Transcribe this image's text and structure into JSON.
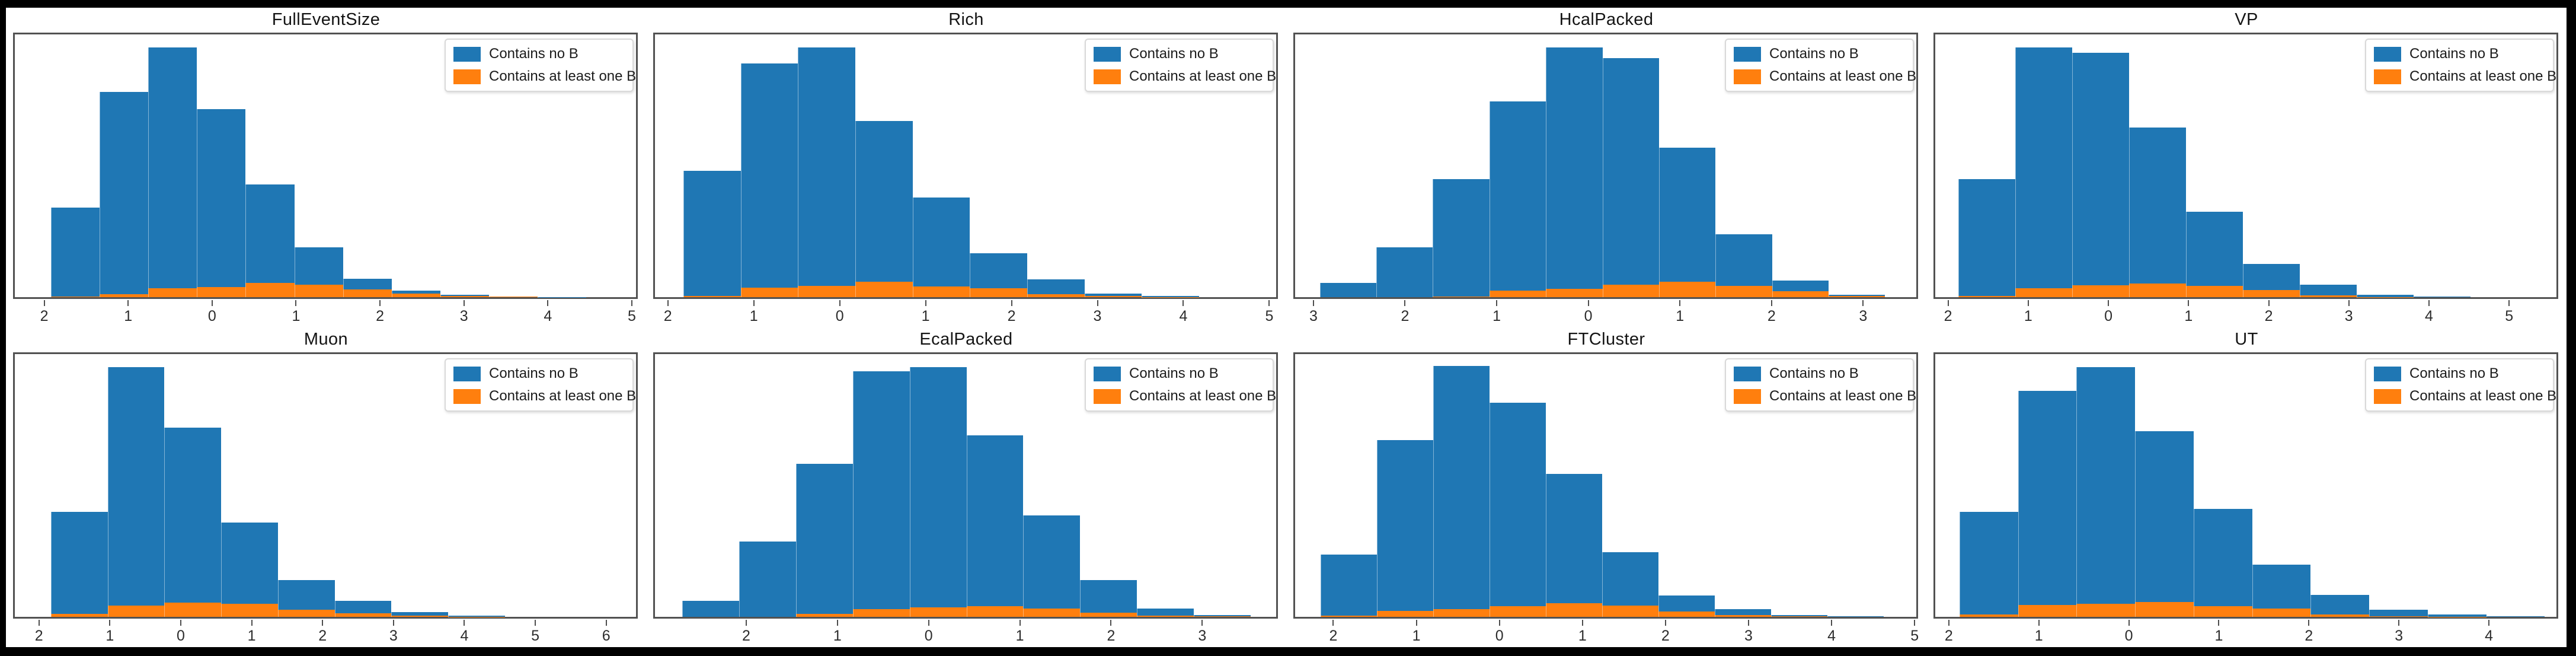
{
  "figure": {
    "background": "#000000",
    "canvas_color": "#ffffff",
    "rows": 2,
    "cols": 4
  },
  "colors": {
    "blue": "#1f77b4",
    "orange": "#ff7f0e",
    "spine": "#525252",
    "tick": "#4d4d4d",
    "title_text": "#141414"
  },
  "legend": {
    "position": "upper right",
    "items": [
      {
        "label": "Contains no B",
        "color": "#1f77b4"
      },
      {
        "label": "Contains at least one B",
        "color": "#ff7f0e"
      }
    ]
  },
  "chart_data": [
    {
      "type": "histogram",
      "title": "FullEventSize",
      "x_range": [
        -2.35,
        5.05
      ],
      "bin_start": -1.92,
      "bin_width": 0.58,
      "grid": false,
      "legend_position": "upper right",
      "x_ticks": [
        {
          "value": -2,
          "label": "2"
        },
        {
          "value": -1,
          "label": "1"
        },
        {
          "value": 0,
          "label": "0"
        },
        {
          "value": 1,
          "label": "1"
        },
        {
          "value": 2,
          "label": "2"
        },
        {
          "value": 3,
          "label": "3"
        },
        {
          "value": 4,
          "label": "4"
        },
        {
          "value": 5,
          "label": "5"
        }
      ],
      "series": [
        {
          "name": "Contains no B",
          "color": "#1f77b4",
          "heights_fraction": [
            0.34,
            0.78,
            0.95,
            0.715,
            0.43,
            0.19,
            0.07,
            0.024,
            0.009,
            0.003,
            0.001
          ]
        },
        {
          "name": "Contains at least one B",
          "color": "#ff7f0e",
          "heights_fraction": [
            0.003,
            0.012,
            0.035,
            0.038,
            0.055,
            0.048,
            0.03,
            0.013,
            0.005,
            0.002,
            0
          ]
        }
      ]
    },
    {
      "type": "histogram",
      "title": "Rich",
      "x_range": [
        -2.15,
        5.08
      ],
      "bin_start": -1.82,
      "bin_width": 0.667,
      "grid": false,
      "legend_position": "upper right",
      "x_ticks": [
        {
          "value": -2,
          "label": "2"
        },
        {
          "value": -1,
          "label": "1"
        },
        {
          "value": 0,
          "label": "0"
        },
        {
          "value": 1,
          "label": "1"
        },
        {
          "value": 2,
          "label": "2"
        },
        {
          "value": 3,
          "label": "3"
        },
        {
          "value": 4,
          "label": "4"
        },
        {
          "value": 5,
          "label": "5"
        }
      ],
      "series": [
        {
          "name": "Contains no B",
          "color": "#1f77b4",
          "heights_fraction": [
            0.48,
            0.89,
            0.95,
            0.67,
            0.38,
            0.167,
            0.068,
            0.013,
            0.004
          ]
        },
        {
          "name": "Contains at least one B",
          "color": "#ff7f0e",
          "heights_fraction": [
            0.004,
            0.037,
            0.042,
            0.058,
            0.04,
            0.033,
            0.012,
            0.004,
            0.001
          ]
        }
      ]
    },
    {
      "type": "histogram",
      "title": "HcalPacked",
      "x_range": [
        -3.2,
        3.58
      ],
      "bin_start": -2.93,
      "bin_width": 0.617,
      "grid": false,
      "legend_position": "upper right",
      "x_ticks": [
        {
          "value": -3,
          "label": "3"
        },
        {
          "value": -2,
          "label": "2"
        },
        {
          "value": -1,
          "label": "1"
        },
        {
          "value": 0,
          "label": "0"
        },
        {
          "value": 1,
          "label": "1"
        },
        {
          "value": 2,
          "label": "2"
        },
        {
          "value": 3,
          "label": "3"
        }
      ],
      "series": [
        {
          "name": "Contains no B",
          "color": "#1f77b4",
          "heights_fraction": [
            0.055,
            0.19,
            0.45,
            0.745,
            0.95,
            0.91,
            0.57,
            0.24,
            0.063,
            0.008
          ]
        },
        {
          "name": "Contains at least one B",
          "color": "#ff7f0e",
          "heights_fraction": [
            0,
            0,
            0.002,
            0.024,
            0.032,
            0.048,
            0.059,
            0.044,
            0.022,
            0.004
          ]
        }
      ]
    },
    {
      "type": "histogram",
      "title": "VP",
      "x_range": [
        -2.16,
        5.59
      ],
      "bin_start": -1.87,
      "bin_width": 0.71,
      "grid": false,
      "legend_position": "upper right",
      "x_ticks": [
        {
          "value": -2,
          "label": "2"
        },
        {
          "value": -1,
          "label": "1"
        },
        {
          "value": 0,
          "label": "0"
        },
        {
          "value": 1,
          "label": "1"
        },
        {
          "value": 2,
          "label": "2"
        },
        {
          "value": 3,
          "label": "3"
        },
        {
          "value": 4,
          "label": "4"
        },
        {
          "value": 5,
          "label": "5"
        }
      ],
      "series": [
        {
          "name": "Contains no B",
          "color": "#1f77b4",
          "heights_fraction": [
            0.45,
            0.95,
            0.93,
            0.646,
            0.325,
            0.127,
            0.047,
            0.01,
            0.003
          ]
        },
        {
          "name": "Contains at least one B",
          "color": "#ff7f0e",
          "heights_fraction": [
            0.005,
            0.035,
            0.046,
            0.051,
            0.043,
            0.026,
            0.006,
            0.001,
            0
          ]
        }
      ]
    },
    {
      "type": "histogram",
      "title": "Muon",
      "x_range": [
        -2.34,
        6.42
      ],
      "bin_start": -1.83,
      "bin_width": 0.8,
      "grid": false,
      "legend_position": "upper right",
      "x_ticks": [
        {
          "value": -2,
          "label": "2"
        },
        {
          "value": -1,
          "label": "1"
        },
        {
          "value": 0,
          "label": "0"
        },
        {
          "value": 1,
          "label": "1"
        },
        {
          "value": 2,
          "label": "2"
        },
        {
          "value": 3,
          "label": "3"
        },
        {
          "value": 4,
          "label": "4"
        },
        {
          "value": 5,
          "label": "5"
        },
        {
          "value": 6,
          "label": "6"
        }
      ],
      "series": [
        {
          "name": "Contains no B",
          "color": "#1f77b4",
          "heights_fraction": [
            0.4,
            0.95,
            0.72,
            0.36,
            0.14,
            0.06,
            0.017,
            0.004
          ]
        },
        {
          "name": "Contains at least one B",
          "color": "#ff7f0e",
          "heights_fraction": [
            0.012,
            0.043,
            0.055,
            0.049,
            0.028,
            0.014,
            0.005,
            0.001
          ]
        }
      ]
    },
    {
      "type": "histogram",
      "title": "EcalPacked",
      "x_range": [
        -3.0,
        3.81
      ],
      "bin_start": -2.7,
      "bin_width": 0.623,
      "grid": false,
      "legend_position": "upper right",
      "x_ticks": [
        {
          "value": -2,
          "label": "2"
        },
        {
          "value": -1,
          "label": "1"
        },
        {
          "value": 0,
          "label": "0"
        },
        {
          "value": 1,
          "label": "1"
        },
        {
          "value": 2,
          "label": "2"
        },
        {
          "value": 3,
          "label": "3"
        }
      ],
      "series": [
        {
          "name": "Contains no B",
          "color": "#1f77b4",
          "heights_fraction": [
            0.06,
            0.286,
            0.583,
            0.935,
            0.95,
            0.69,
            0.386,
            0.14,
            0.032,
            0.006
          ]
        },
        {
          "name": "Contains at least one B",
          "color": "#ff7f0e",
          "heights_fraction": [
            0,
            0,
            0.011,
            0.03,
            0.036,
            0.041,
            0.032,
            0.016,
            0.005,
            0.002
          ]
        }
      ]
    },
    {
      "type": "histogram",
      "title": "FTCluster",
      "x_range": [
        -2.46,
        5.02
      ],
      "bin_start": -2.15,
      "bin_width": 0.678,
      "grid": false,
      "legend_position": "upper right",
      "x_ticks": [
        {
          "value": -2,
          "label": "2"
        },
        {
          "value": -1,
          "label": "1"
        },
        {
          "value": 0,
          "label": "0"
        },
        {
          "value": 1,
          "label": "1"
        },
        {
          "value": 2,
          "label": "2"
        },
        {
          "value": 3,
          "label": "3"
        },
        {
          "value": 4,
          "label": "4"
        },
        {
          "value": 5,
          "label": "5"
        }
      ],
      "series": [
        {
          "name": "Contains no B",
          "color": "#1f77b4",
          "heights_fraction": [
            0.237,
            0.673,
            0.954,
            0.815,
            0.545,
            0.246,
            0.081,
            0.029,
            0.006,
            0.002
          ]
        },
        {
          "name": "Contains at least one B",
          "color": "#ff7f0e",
          "heights_fraction": [
            0.004,
            0.022,
            0.03,
            0.04,
            0.053,
            0.044,
            0.02,
            0.006,
            0.002,
            0
          ]
        }
      ]
    },
    {
      "type": "histogram",
      "title": "UT",
      "x_range": [
        -2.15,
        4.75
      ],
      "bin_start": -1.88,
      "bin_width": 0.65,
      "grid": false,
      "legend_position": "upper right",
      "x_ticks": [
        {
          "value": -2,
          "label": "2"
        },
        {
          "value": -1,
          "label": "1"
        },
        {
          "value": 0,
          "label": "0"
        },
        {
          "value": 1,
          "label": "1"
        },
        {
          "value": 2,
          "label": "2"
        },
        {
          "value": 3,
          "label": "3"
        },
        {
          "value": 4,
          "label": "4"
        }
      ],
      "series": [
        {
          "name": "Contains no B",
          "color": "#1f77b4",
          "heights_fraction": [
            0.4,
            0.86,
            0.95,
            0.706,
            0.41,
            0.198,
            0.084,
            0.026,
            0.009,
            0.002
          ]
        },
        {
          "name": "Contains at least one B",
          "color": "#ff7f0e",
          "heights_fraction": [
            0.008,
            0.045,
            0.05,
            0.056,
            0.04,
            0.031,
            0.008,
            0.002,
            0.001,
            0
          ]
        }
      ]
    }
  ]
}
